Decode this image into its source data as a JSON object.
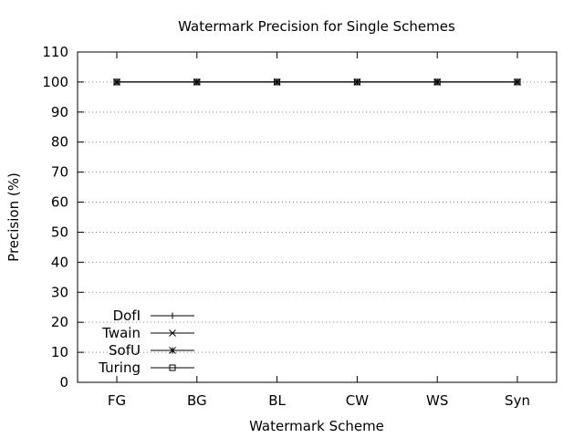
{
  "chart_data": {
    "type": "line",
    "title": "Watermark Precision for Single Schemes",
    "xlabel": "Watermark Scheme",
    "ylabel": "Precision (%)",
    "categories": [
      "FG",
      "BG",
      "BL",
      "CW",
      "WS",
      "Syn"
    ],
    "ylim": [
      0,
      110
    ],
    "yticks": [
      0,
      10,
      20,
      30,
      40,
      50,
      60,
      70,
      80,
      90,
      100,
      110
    ],
    "grid": true,
    "legend_position": "bottom-left",
    "series": [
      {
        "name": "DofI",
        "marker": "plus",
        "values": [
          100,
          100,
          100,
          100,
          100,
          100
        ]
      },
      {
        "name": "Twain",
        "marker": "cross",
        "values": [
          100,
          100,
          100,
          100,
          100,
          100
        ]
      },
      {
        "name": "SofU",
        "marker": "star",
        "values": [
          100,
          100,
          100,
          100,
          100,
          100
        ]
      },
      {
        "name": "Turing",
        "marker": "square",
        "values": [
          100,
          100,
          100,
          100,
          100,
          100
        ]
      }
    ],
    "colors": {
      "line": "#000000",
      "grid": "#888888",
      "background": "#ffffff"
    }
  }
}
